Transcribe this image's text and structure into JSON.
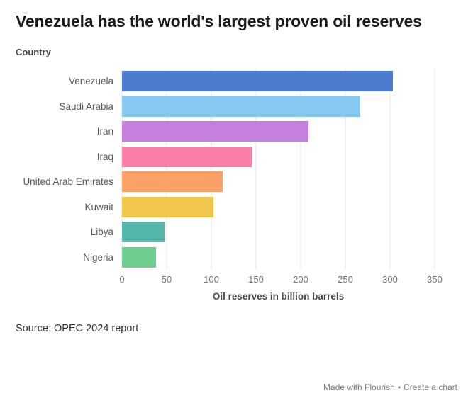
{
  "header": {
    "title": "Venezuela has the world's largest proven oil reserves"
  },
  "chart_data": {
    "type": "bar",
    "orientation": "horizontal",
    "title": "Venezuela has the world's largest proven oil reserves",
    "ylabel": "Country",
    "xlabel": "Oil reserves in billion barrels",
    "categories": [
      "Venezuela",
      "Saudi Arabia",
      "Iran",
      "Iraq",
      "United Arab Emirates",
      "Kuwait",
      "Libya",
      "Nigeria"
    ],
    "values": [
      303,
      267,
      209,
      145,
      113,
      102,
      48,
      38
    ],
    "colors": [
      "#4d7bd0",
      "#85c8f2",
      "#c57fdd",
      "#f97da6",
      "#fba167",
      "#f0c64f",
      "#55b7ac",
      "#6fcd90"
    ],
    "xlim": [
      0,
      350
    ],
    "x_ticks": [
      0,
      50,
      100,
      150,
      200,
      250,
      300,
      350
    ],
    "grid": true,
    "legend": "none"
  },
  "footer": {
    "source": "Source: OPEC 2024 report",
    "credit": "Made with Flourish",
    "separator": "•",
    "create_link": "Create a chart"
  }
}
